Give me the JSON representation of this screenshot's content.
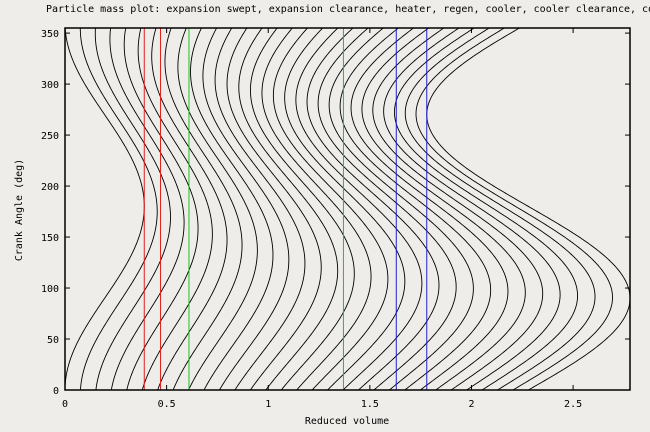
{
  "chart_data": {
    "type": "line",
    "title": "Particle mass plot: expansion swept, expansion clearance, heater, regen, cooler, cooler clearance, compression swept",
    "xlabel": "Reduced volume",
    "ylabel": "Crank Angle (deg)",
    "xlim": [
      0,
      2.78
    ],
    "ylim": [
      0,
      355
    ],
    "xticks": [
      "0",
      "0.5",
      "1",
      "1.5",
      "2",
      "2.5"
    ],
    "xtick_values": [
      0,
      0.5,
      1,
      1.5,
      2,
      2.5
    ],
    "yticks": [
      "0",
      "50",
      "100",
      "150",
      "200",
      "250",
      "300",
      "350"
    ],
    "ytick_values": [
      0,
      50,
      100,
      150,
      200,
      250,
      300,
      350
    ],
    "grid": false,
    "legend": "none",
    "boundaries": [
      {
        "x": 0.39,
        "color": "#e02020"
      },
      {
        "x": 0.47,
        "color": "#e02020"
      },
      {
        "x": 0.61,
        "color": "#20c020"
      },
      {
        "x": 1.37,
        "color": "#20c020"
      },
      {
        "x": 1.63,
        "color": "#2020d0"
      },
      {
        "x": 1.78,
        "color": "#2020d0"
      }
    ],
    "mass_curves": {
      "count": 31,
      "expansion_swept": 0.39,
      "dead_volume_end": 1.78,
      "compression_swept": 1.0,
      "compression_phase_lag_deg": 90,
      "angle_range_deg": [
        0,
        355
      ],
      "angle_step_deg": 5,
      "color": "#000000"
    }
  }
}
